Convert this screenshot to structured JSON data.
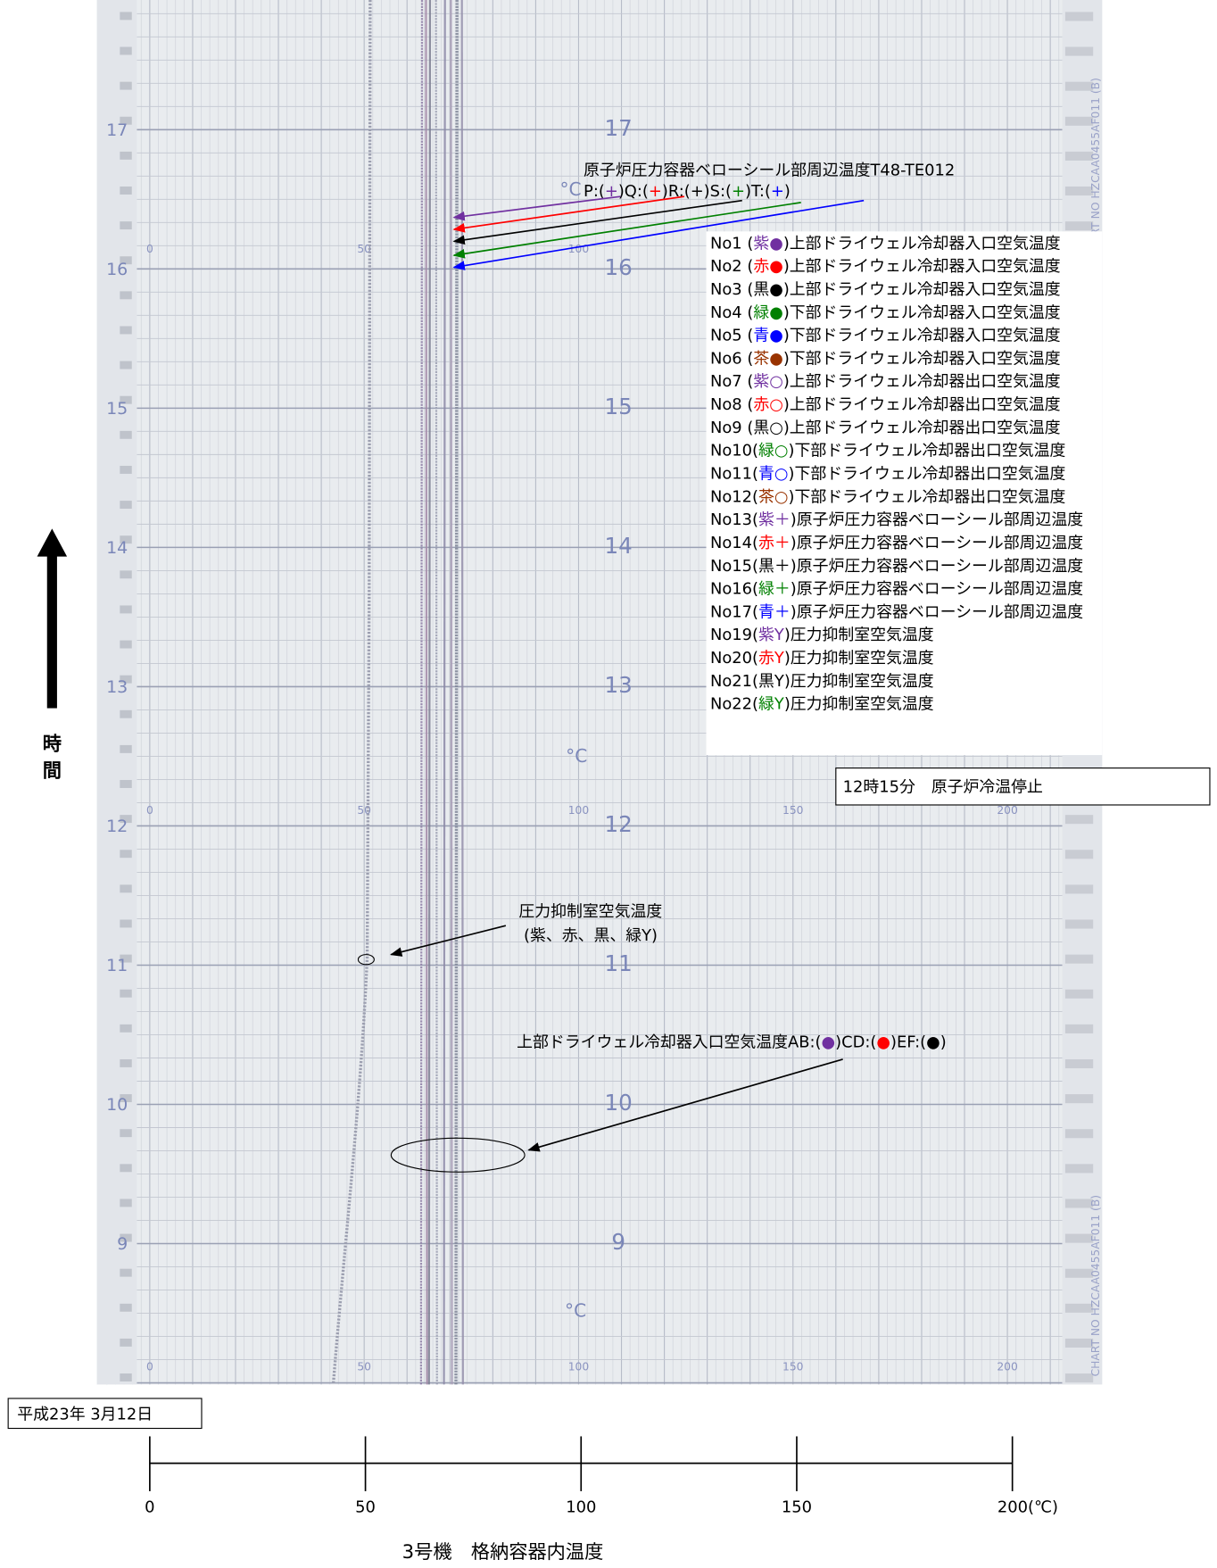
{
  "paper": {
    "hour_labels": [
      "17",
      "16",
      "15",
      "14",
      "13",
      "12",
      "11",
      "10",
      "9"
    ],
    "scale_labels": [
      "0",
      "50",
      "100",
      "150",
      "200"
    ],
    "unit": "°C",
    "chart_no": "CHART NO HZCAA0455AF011 (B)"
  },
  "bellows_note": {
    "title": "原子炉圧力容器ベローシール部周辺温度T48-TE012",
    "segments": [
      {
        "text": "P:("
      },
      {
        "text": "+",
        "color": "#7030a0"
      },
      {
        "text": ")Q:("
      },
      {
        "text": "+",
        "color": "#ff0000"
      },
      {
        "text": ")R:("
      },
      {
        "text": "+",
        "color": "#000000"
      },
      {
        "text": ")S:("
      },
      {
        "text": "+",
        "color": "#008000"
      },
      {
        "text": ")T:("
      },
      {
        "text": "+",
        "color": "#0000ff"
      },
      {
        "text": ")"
      }
    ]
  },
  "legend": [
    {
      "no": "No1 (",
      "key": "紫●",
      "desc": ")上部ドライウェル冷却器入口空気温度",
      "color": "#7030a0"
    },
    {
      "no": "No2 (",
      "key": "赤●",
      "desc": ")上部ドライウェル冷却器入口空気温度",
      "color": "#ff0000"
    },
    {
      "no": "No3 (",
      "key": "黒●",
      "desc": ")上部ドライウェル冷却器入口空気温度",
      "color": "#000000"
    },
    {
      "no": "No4 (",
      "key": "緑●",
      "desc": ")下部ドライウェル冷却器入口空気温度",
      "color": "#008000"
    },
    {
      "no": "No5 (",
      "key": "青●",
      "desc": ")下部ドライウェル冷却器入口空気温度",
      "color": "#0000ff"
    },
    {
      "no": "No6 (",
      "key": "茶●",
      "desc": ")下部ドライウェル冷却器入口空気温度",
      "color": "#993300"
    },
    {
      "no": "No7 (",
      "key": "紫○",
      "desc": ")上部ドライウェル冷却器出口空気温度",
      "color": "#7030a0"
    },
    {
      "no": "No8 (",
      "key": "赤○",
      "desc": ")上部ドライウェル冷却器出口空気温度",
      "color": "#ff0000"
    },
    {
      "no": "No9 (",
      "key": "黒○",
      "desc": ")上部ドライウェル冷却器出口空気温度",
      "color": "#000000"
    },
    {
      "no": "No10(",
      "key": "緑○",
      "desc": ")下部ドライウェル冷却器出口空気温度",
      "color": "#008000"
    },
    {
      "no": "No11(",
      "key": "青○",
      "desc": ")下部ドライウェル冷却器出口空気温度",
      "color": "#0000ff"
    },
    {
      "no": "No12(",
      "key": "茶○",
      "desc": ")下部ドライウェル冷却器出口空気温度",
      "color": "#993300"
    },
    {
      "no": "No13(",
      "key": "紫＋",
      "desc": ")原子炉圧力容器ベローシール部周辺温度",
      "color": "#7030a0"
    },
    {
      "no": "No14(",
      "key": "赤＋",
      "desc": ")原子炉圧力容器ベローシール部周辺温度",
      "color": "#ff0000"
    },
    {
      "no": "No15(",
      "key": "黒＋",
      "desc": ")原子炉圧力容器ベローシール部周辺温度",
      "color": "#000000"
    },
    {
      "no": "No16(",
      "key": "緑＋",
      "desc": ")原子炉圧力容器ベローシール部周辺温度",
      "color": "#008000"
    },
    {
      "no": "No17(",
      "key": "青＋",
      "desc": ")原子炉圧力容器ベローシール部周辺温度",
      "color": "#0000ff"
    },
    {
      "no": "No19(",
      "key": "紫Y",
      "desc": ")圧力抑制室空気温度",
      "color": "#7030a0"
    },
    {
      "no": "No20(",
      "key": "赤Y",
      "desc": ")圧力抑制室空気温度",
      "color": "#ff0000"
    },
    {
      "no": "No21(",
      "key": "黒Y",
      "desc": ")圧力抑制室空気温度",
      "color": "#000000"
    },
    {
      "no": "No22(",
      "key": "緑Y",
      "desc": ")圧力抑制室空気温度",
      "color": "#008000"
    }
  ],
  "shutdown_note": "12時15分　原子炉冷温停止",
  "suppression_note": {
    "line1": "圧力抑制室空気温度",
    "line2": "(紫、赤、黒、緑Y)"
  },
  "drywell_note": {
    "segments": [
      {
        "text": "上部ドライウェル冷却器入口空気温度AB:("
      },
      {
        "text": "●",
        "color": "#7030a0"
      },
      {
        "text": ")CD:("
      },
      {
        "text": "●",
        "color": "#ff0000"
      },
      {
        "text": ")EF:("
      },
      {
        "text": "●",
        "color": "#000000"
      },
      {
        "text": ")"
      }
    ]
  },
  "date": "平成23年 3月12日",
  "temp_axis": {
    "ticks": [
      "0",
      "50",
      "100",
      "150",
      "200(℃)"
    ],
    "title": "3号機　格納容器内温度"
  },
  "time_axis": {
    "label_chars": [
      "時",
      "間"
    ]
  }
}
